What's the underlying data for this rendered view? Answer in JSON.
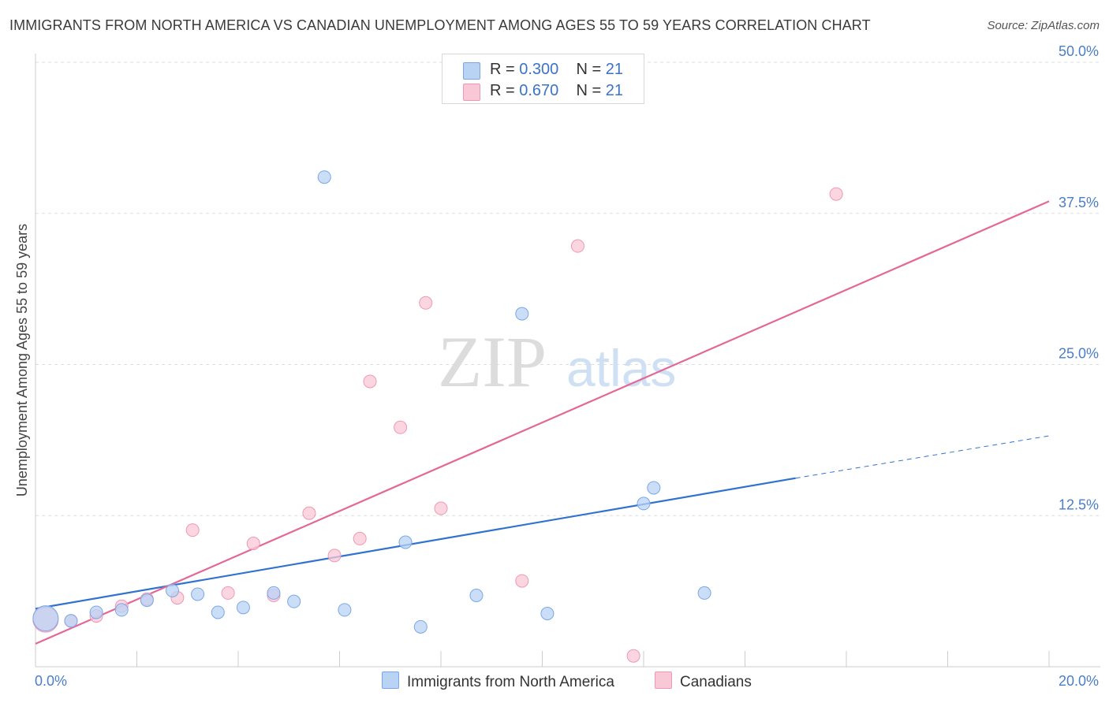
{
  "header": {
    "title": "IMMIGRANTS FROM NORTH AMERICA VS CANADIAN UNEMPLOYMENT AMONG AGES 55 TO 59 YEARS CORRELATION CHART",
    "source": "Source: ZipAtlas.com"
  },
  "legend": {
    "blue": {
      "r_label": "R =",
      "r_value": "0.300",
      "n_label": "N =",
      "n_value": "21"
    },
    "pink": {
      "r_label": "R =",
      "r_value": "0.670",
      "n_label": "N =",
      "n_value": "21"
    }
  },
  "bottom_legend": {
    "blue_label": "Immigrants from North America",
    "pink_label": "Canadians"
  },
  "watermark": {
    "zip": "ZIP",
    "atlas": "atlas"
  },
  "colors": {
    "blue_fill": "#b9d3f5",
    "blue_stroke": "#7aa6e6",
    "blue_line": "#2f72d0",
    "pink_fill": "#f9c8d7",
    "pink_stroke": "#ef98b4",
    "pink_line": "#e46795"
  },
  "chart_data": {
    "type": "scatter",
    "title": "IMMIGRANTS FROM NORTH AMERICA VS CANADIAN UNEMPLOYMENT AMONG AGES 55 TO 59 YEARS CORRELATION CHART",
    "xlabel": "",
    "ylabel": "Unemployment Among Ages 55 to 59 years",
    "xlim": [
      0,
      20
    ],
    "ylim": [
      0,
      50
    ],
    "x_tick_labels": [
      {
        "value": 0,
        "label": "0.0%"
      },
      {
        "value": 20,
        "label": "20.0%"
      }
    ],
    "x_minor_ticks": [
      2,
      4,
      6,
      8,
      10,
      12,
      14,
      16,
      18
    ],
    "y_ticks": [
      {
        "value": 12.5,
        "label": "12.5%"
      },
      {
        "value": 25,
        "label": "25.0%"
      },
      {
        "value": 37.5,
        "label": "37.5%"
      },
      {
        "value": 50,
        "label": "50.0%"
      }
    ],
    "series": [
      {
        "name": "Immigrants from North America",
        "color": "blue",
        "points": [
          {
            "x": 0.2,
            "y": 4.0,
            "big": true
          },
          {
            "x": 0.7,
            "y": 3.8
          },
          {
            "x": 1.2,
            "y": 4.5
          },
          {
            "x": 1.7,
            "y": 4.7
          },
          {
            "x": 2.2,
            "y": 5.5
          },
          {
            "x": 2.7,
            "y": 6.3
          },
          {
            "x": 3.2,
            "y": 6.0
          },
          {
            "x": 3.6,
            "y": 4.5
          },
          {
            "x": 4.1,
            "y": 4.9
          },
          {
            "x": 4.7,
            "y": 6.1
          },
          {
            "x": 5.1,
            "y": 5.4
          },
          {
            "x": 5.7,
            "y": 40.5
          },
          {
            "x": 6.1,
            "y": 4.7
          },
          {
            "x": 7.3,
            "y": 10.3
          },
          {
            "x": 7.6,
            "y": 3.3
          },
          {
            "x": 8.7,
            "y": 5.9
          },
          {
            "x": 9.6,
            "y": 29.2
          },
          {
            "x": 10.1,
            "y": 4.4
          },
          {
            "x": 12.0,
            "y": 13.5
          },
          {
            "x": 12.2,
            "y": 14.8
          },
          {
            "x": 13.2,
            "y": 6.1
          }
        ],
        "trend": {
          "x0": 0,
          "y0": 4.8,
          "x1": 15.0,
          "y1": 15.6,
          "dash_x1": 20,
          "dash_y1": 19.1
        }
      },
      {
        "name": "Canadians",
        "color": "pink",
        "points": [
          {
            "x": 0.2,
            "y": 3.9,
            "big": true
          },
          {
            "x": 0.7,
            "y": 3.8
          },
          {
            "x": 1.2,
            "y": 4.2
          },
          {
            "x": 1.7,
            "y": 5.0
          },
          {
            "x": 2.2,
            "y": 5.6
          },
          {
            "x": 2.8,
            "y": 5.7
          },
          {
            "x": 3.1,
            "y": 11.3
          },
          {
            "x": 3.8,
            "y": 6.1
          },
          {
            "x": 4.3,
            "y": 10.2
          },
          {
            "x": 4.7,
            "y": 5.9
          },
          {
            "x": 5.4,
            "y": 12.7
          },
          {
            "x": 5.9,
            "y": 9.2
          },
          {
            "x": 6.4,
            "y": 10.6
          },
          {
            "x": 6.6,
            "y": 23.6
          },
          {
            "x": 7.2,
            "y": 19.8
          },
          {
            "x": 7.7,
            "y": 30.1
          },
          {
            "x": 8.0,
            "y": 13.1
          },
          {
            "x": 9.6,
            "y": 7.1
          },
          {
            "x": 10.7,
            "y": 34.8
          },
          {
            "x": 11.8,
            "y": 0.9
          },
          {
            "x": 15.8,
            "y": 39.1
          }
        ],
        "trend": {
          "x0": 0,
          "y0": 1.9,
          "x1": 20,
          "y1": 38.5
        }
      }
    ]
  }
}
